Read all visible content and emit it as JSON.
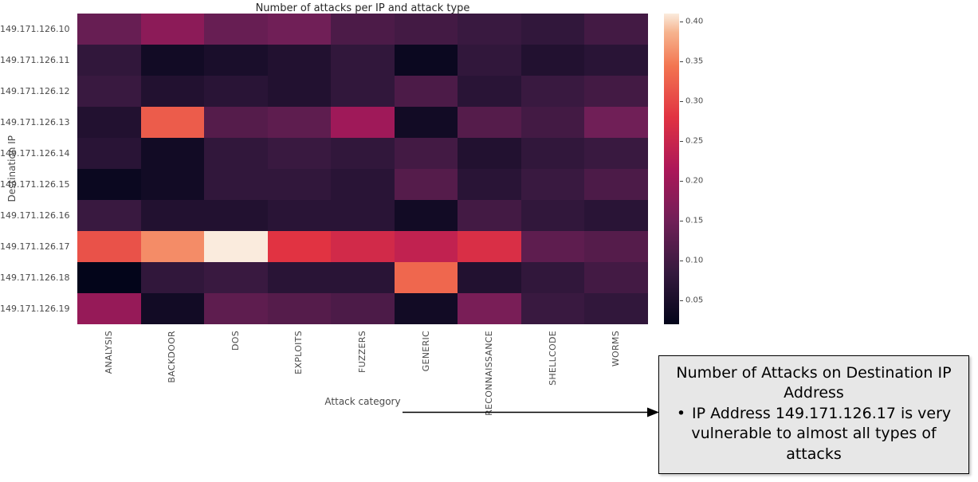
{
  "chart_data": {
    "type": "heatmap",
    "title": "Number of attacks per IP and attack type",
    "xlabel": "Attack category",
    "ylabel": "Destination IP",
    "columns": [
      "ANALYSIS",
      "BACKDOOR",
      "DOS",
      "EXPLOITS",
      "FUZZERS",
      "GENERIC",
      "RECONNAISSANCE",
      "SHELLCODE",
      "WORMS"
    ],
    "rows": [
      "149.171.126.10",
      "149.171.126.11",
      "149.171.126.12",
      "149.171.126.13",
      "149.171.126.14",
      "149.171.126.15",
      "149.171.126.16",
      "149.171.126.17",
      "149.171.126.18",
      "149.171.126.19"
    ],
    "values": [
      [
        0.14,
        0.18,
        0.14,
        0.15,
        0.11,
        0.1,
        0.09,
        0.08,
        0.1
      ],
      [
        0.08,
        0.04,
        0.05,
        0.06,
        0.08,
        0.03,
        0.08,
        0.06,
        0.07
      ],
      [
        0.09,
        0.06,
        0.07,
        0.06,
        0.08,
        0.11,
        0.07,
        0.09,
        0.1
      ],
      [
        0.06,
        0.32,
        0.12,
        0.13,
        0.2,
        0.04,
        0.12,
        0.1,
        0.15
      ],
      [
        0.07,
        0.04,
        0.08,
        0.09,
        0.08,
        0.1,
        0.06,
        0.08,
        0.09
      ],
      [
        0.03,
        0.04,
        0.08,
        0.08,
        0.07,
        0.12,
        0.07,
        0.09,
        0.11
      ],
      [
        0.09,
        0.06,
        0.06,
        0.07,
        0.07,
        0.04,
        0.1,
        0.08,
        0.07
      ],
      [
        0.31,
        0.36,
        0.41,
        0.28,
        0.26,
        0.24,
        0.27,
        0.13,
        0.12
      ],
      [
        0.02,
        0.08,
        0.09,
        0.07,
        0.07,
        0.33,
        0.06,
        0.08,
        0.1
      ],
      [
        0.19,
        0.04,
        0.13,
        0.12,
        0.11,
        0.04,
        0.16,
        0.09,
        0.08
      ]
    ],
    "vmin": 0.02,
    "vmax": 0.41,
    "colorbar_ticks": [
      0.05,
      0.1,
      0.15,
      0.2,
      0.25,
      0.3,
      0.35,
      0.4
    ],
    "legend_position": "right-colorbar",
    "grid": false,
    "colormap": {
      "name": "rocket",
      "anchors": [
        [
          0.0,
          "#03051A"
        ],
        [
          0.167,
          "#35193E"
        ],
        [
          0.333,
          "#701F57"
        ],
        [
          0.5,
          "#AD1759"
        ],
        [
          0.667,
          "#E13342"
        ],
        [
          0.833,
          "#F37651"
        ],
        [
          0.94,
          "#F6B48F"
        ],
        [
          1.0,
          "#FAEBDD"
        ]
      ]
    }
  },
  "annotation": {
    "title_line": "Number of Attacks on Destination IP Address",
    "bullet_marker": "•",
    "bullet_text": "IP Address 149.171.126.17 is very vulnerable to almost all types of attacks"
  }
}
